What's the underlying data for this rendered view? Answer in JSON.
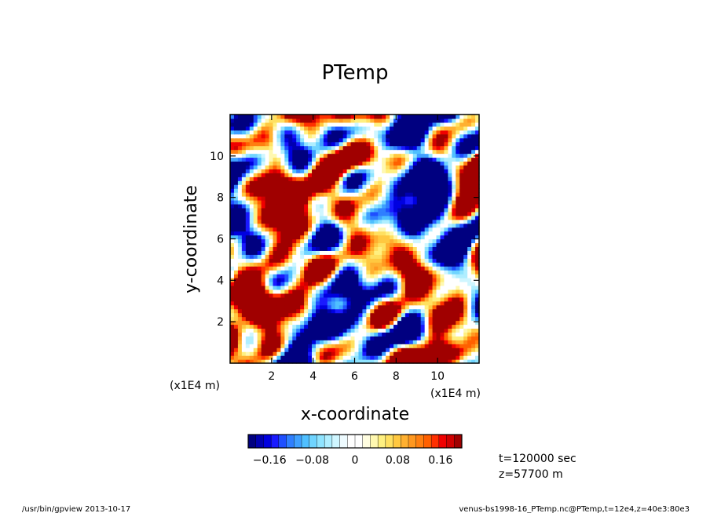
{
  "chart_data": {
    "type": "heatmap",
    "title": "PTemp",
    "xlabel": "x-coordinate",
    "ylabel": "y-coordinate",
    "x_unit_label": "(x1E4 m)",
    "y_unit_label": "(x1E4 m)",
    "xlim": [
      0,
      12
    ],
    "ylim": [
      0,
      12
    ],
    "x_ticks": [
      2,
      4,
      6,
      8,
      10
    ],
    "y_ticks": [
      2,
      4,
      6,
      8,
      10
    ],
    "x_tick_labels": [
      "2",
      "4",
      "6",
      "8",
      "10"
    ],
    "y_tick_labels": [
      "2",
      "4",
      "6",
      "8",
      "10"
    ],
    "colorbar": {
      "range": [
        -0.2,
        0.2
      ],
      "ticks": [
        -0.16,
        -0.08,
        0,
        0.08,
        0.16
      ],
      "tick_labels": [
        "−0.16",
        "−0.08",
        "0",
        "0.08",
        "0.16"
      ],
      "colors": [
        "#000080",
        "#0000b0",
        "#0000e0",
        "#1a1aff",
        "#1f4fff",
        "#2f7fff",
        "#3fa0ff",
        "#4fbfff",
        "#6fd4ff",
        "#8fe4ff",
        "#afeeff",
        "#cff6ff",
        "#eefbff",
        "#ffffff",
        "#ffffff",
        "#fffde0",
        "#fff8b0",
        "#fff080",
        "#ffe060",
        "#ffc840",
        "#ffb030",
        "#ff9820",
        "#ff7f10",
        "#ff6000",
        "#ff3000",
        "#f00000",
        "#d00000",
        "#a00000"
      ]
    },
    "field_note_white_regions": "values near 0 are white"
  },
  "info": {
    "time": "t=120000 sec",
    "height": "z=57700 m"
  },
  "footer": {
    "left": "/usr/bin/gpview   2013-10-17",
    "right": "venus-bs1998-16_PTemp.nc@PTemp,t=12e4,z=40e3:80e3"
  }
}
